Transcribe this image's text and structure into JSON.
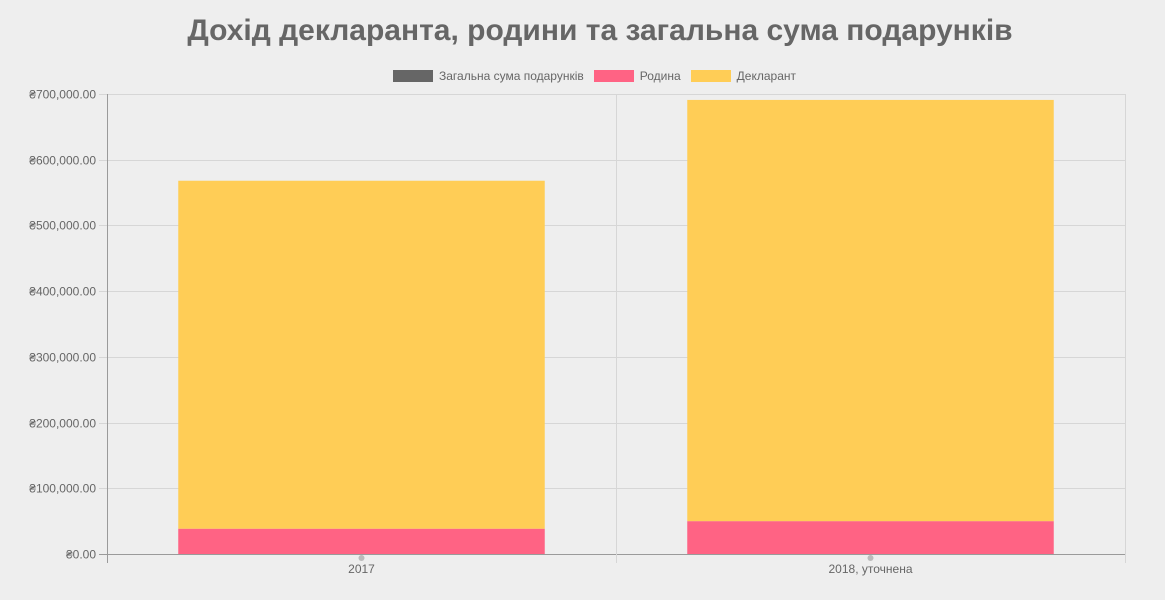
{
  "chart_data": {
    "type": "bar",
    "stacked": true,
    "title": "Дохід декларанта, родини та загальна сума подарунків",
    "categories": [
      "2017",
      "2018, уточнена"
    ],
    "series": [
      {
        "name": "Загальна сума подарунків",
        "color": "#666666",
        "values": [
          0,
          0
        ]
      },
      {
        "name": "Родина",
        "color": "#ff6384",
        "values": [
          38500,
          50000
        ]
      },
      {
        "name": "Декларант",
        "color": "#ffcd56",
        "values": [
          529500,
          641000
        ]
      }
    ],
    "y_ticks": [
      "₴0.00",
      "₴100,000.00",
      "₴200,000.00",
      "₴300,000.00",
      "₴400,000.00",
      "₴500,000.00",
      "₴600,000.00",
      "₴700,000.00"
    ],
    "ylim": [
      0,
      700000
    ],
    "grid": true,
    "legend_position": "top"
  }
}
